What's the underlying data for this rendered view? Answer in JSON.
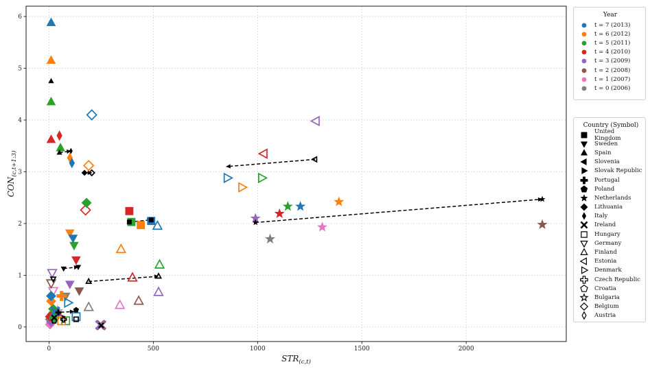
{
  "chart_data": {
    "type": "scatter",
    "title": "",
    "xlabel": "STR_(c,t)",
    "ylabel": "CON_(c,t+1:3)",
    "xlim": [
      -110,
      2480
    ],
    "ylim": [
      -0.28,
      6.2
    ],
    "xticks": [
      0,
      500,
      1000,
      1500,
      2000
    ],
    "yticks": [
      0,
      1,
      2,
      3,
      4,
      5,
      6
    ],
    "grid": true,
    "legend_year": {
      "title": "Year",
      "entries": [
        {
          "label": "t = 7 (2013)",
          "color": "#1f77b4"
        },
        {
          "label": "t = 6 (2012)",
          "color": "#ff7f0e"
        },
        {
          "label": "t = 5 (2011)",
          "color": "#2ca02c"
        },
        {
          "label": "t = 4 (2010)",
          "color": "#d62728"
        },
        {
          "label": "t = 3 (2009)",
          "color": "#9467bd"
        },
        {
          "label": "t = 2 (2008)",
          "color": "#8c564b"
        },
        {
          "label": "t = 1 (2007)",
          "color": "#e377c2"
        },
        {
          "label": "t = 0 (2006)",
          "color": "#7f7f7f"
        }
      ]
    },
    "legend_country": {
      "title": "Country (Symbol)",
      "entries": [
        {
          "label": "United Kingdom",
          "symbol": "square",
          "filled": true
        },
        {
          "label": "Sweden",
          "symbol": "tri-down",
          "filled": true
        },
        {
          "label": "Spain",
          "symbol": "tri-up",
          "filled": true
        },
        {
          "label": "Slovenia",
          "symbol": "tri-left",
          "filled": true
        },
        {
          "label": "Slovak Republic",
          "symbol": "tri-right",
          "filled": true
        },
        {
          "label": "Portugal",
          "symbol": "plus",
          "filled": true
        },
        {
          "label": "Poland",
          "symbol": "pentagon",
          "filled": true
        },
        {
          "label": "Netherlands",
          "symbol": "star",
          "filled": true
        },
        {
          "label": "Lithuania",
          "symbol": "diamond",
          "filled": true
        },
        {
          "label": "Italy",
          "symbol": "thin-diamond",
          "filled": true
        },
        {
          "label": "Ireland",
          "symbol": "x",
          "filled": true
        },
        {
          "label": "Hungary",
          "symbol": "square",
          "filled": false
        },
        {
          "label": "Germany",
          "symbol": "tri-down",
          "filled": false
        },
        {
          "label": "Finland",
          "symbol": "tri-up",
          "filled": false
        },
        {
          "label": "Estonia",
          "symbol": "tri-left",
          "filled": false
        },
        {
          "label": "Denmark",
          "symbol": "tri-right",
          "filled": false
        },
        {
          "label": "Czech Republic",
          "symbol": "plus",
          "filled": false
        },
        {
          "label": "Croatia",
          "symbol": "pentagon",
          "filled": false
        },
        {
          "label": "Bulgaria",
          "symbol": "star",
          "filled": false
        },
        {
          "label": "Belgium",
          "symbol": "diamond",
          "filled": false
        },
        {
          "label": "Austria",
          "symbol": "thin-diamond",
          "filled": false
        }
      ]
    },
    "series": [
      {
        "name": "t = 7 (2013)",
        "color": "#1f77b4",
        "points": [
          {
            "country": "Spain",
            "x": 10,
            "y": 5.88
          },
          {
            "country": "Belgium",
            "x": 205,
            "y": 4.1
          },
          {
            "country": "Italy",
            "x": 110,
            "y": 3.17
          },
          {
            "country": "Denmark",
            "x": 855,
            "y": 2.88
          },
          {
            "country": "Netherlands",
            "x": 1205,
            "y": 2.33
          },
          {
            "country": "United Kingdom",
            "x": 490,
            "y": 2.05
          },
          {
            "country": "Finland",
            "x": 520,
            "y": 1.95
          },
          {
            "country": "Sweden",
            "x": 115,
            "y": 1.72
          },
          {
            "country": "Lithuania",
            "x": 10,
            "y": 0.6
          },
          {
            "country": "Denmark",
            "x": 90,
            "y": 0.47
          },
          {
            "country": "Hungary",
            "x": 130,
            "y": 0.2
          },
          {
            "country": "Ireland",
            "x": 30,
            "y": 0.3
          }
        ]
      },
      {
        "name": "t = 6 (2012)",
        "color": "#ff7f0e",
        "points": [
          {
            "country": "Spain",
            "x": 10,
            "y": 5.15
          },
          {
            "country": "Italy",
            "x": 100,
            "y": 3.27
          },
          {
            "country": "Belgium",
            "x": 190,
            "y": 3.12
          },
          {
            "country": "Denmark",
            "x": 925,
            "y": 2.7
          },
          {
            "country": "Netherlands",
            "x": 1390,
            "y": 2.42
          },
          {
            "country": "United Kingdom",
            "x": 440,
            "y": 1.97
          },
          {
            "country": "Sweden",
            "x": 100,
            "y": 1.82
          },
          {
            "country": "Finland",
            "x": 345,
            "y": 1.5
          },
          {
            "country": "Lithuania",
            "x": 10,
            "y": 0.5
          },
          {
            "country": "Portugal",
            "x": 60,
            "y": 0.6
          },
          {
            "country": "Hungary",
            "x": 60,
            "y": 0.12
          }
        ]
      },
      {
        "name": "t = 5 (2011)",
        "color": "#2ca02c",
        "points": [
          {
            "country": "Spain",
            "x": 10,
            "y": 4.35
          },
          {
            "country": "Spain",
            "x": 55,
            "y": 3.46
          },
          {
            "country": "Lithuania",
            "x": 180,
            "y": 2.4
          },
          {
            "country": "Denmark",
            "x": 1020,
            "y": 2.88
          },
          {
            "country": "Netherlands",
            "x": 1145,
            "y": 2.33
          },
          {
            "country": "United Kingdom",
            "x": 395,
            "y": 2.03
          },
          {
            "country": "Sweden",
            "x": 120,
            "y": 1.58
          },
          {
            "country": "Finland",
            "x": 530,
            "y": 1.2
          },
          {
            "country": "Lithuania",
            "x": 20,
            "y": 0.35
          },
          {
            "country": "Portugal",
            "x": 25,
            "y": 0.18
          },
          {
            "country": "Hungary",
            "x": 80,
            "y": 0.12
          }
        ]
      },
      {
        "name": "t = 4 (2010)",
        "color": "#d62728",
        "points": [
          {
            "country": "Spain",
            "x": 10,
            "y": 3.62
          },
          {
            "country": "Italy",
            "x": 50,
            "y": 3.7
          },
          {
            "country": "Belgium",
            "x": 175,
            "y": 2.26
          },
          {
            "country": "Estonia",
            "x": 1030,
            "y": 3.35
          },
          {
            "country": "Netherlands",
            "x": 1105,
            "y": 2.19
          },
          {
            "country": "United Kingdom",
            "x": 385,
            "y": 2.24
          },
          {
            "country": "Sweden",
            "x": 130,
            "y": 1.3
          },
          {
            "country": "Finland",
            "x": 400,
            "y": 0.95
          },
          {
            "country": "Portugal",
            "x": 35,
            "y": 0.25
          },
          {
            "country": "Lithuania",
            "x": 5,
            "y": 0.2
          }
        ]
      },
      {
        "name": "t = 3 (2009)",
        "color": "#9467bd",
        "points": [
          {
            "country": "Estonia",
            "x": 1280,
            "y": 3.98
          },
          {
            "country": "Netherlands",
            "x": 990,
            "y": 2.1
          },
          {
            "country": "Sweden",
            "x": 100,
            "y": 0.83
          },
          {
            "country": "Finland",
            "x": 525,
            "y": 0.67
          },
          {
            "country": "Germany",
            "x": 15,
            "y": 1.05
          },
          {
            "country": "Lithuania",
            "x": 10,
            "y": 0.1
          },
          {
            "country": "Ireland",
            "x": 245,
            "y": 0.04
          }
        ]
      },
      {
        "name": "t = 2 (2008)",
        "color": "#8c564b",
        "points": [
          {
            "country": "Netherlands",
            "x": 2365,
            "y": 1.98
          },
          {
            "country": "Finland",
            "x": 430,
            "y": 0.5
          },
          {
            "country": "Sweden",
            "x": 145,
            "y": 0.7
          },
          {
            "country": "Germany",
            "x": 10,
            "y": 0.85
          },
          {
            "country": "Lithuania",
            "x": 15,
            "y": 0.25
          },
          {
            "country": "Ireland",
            "x": 250,
            "y": 0.04
          }
        ]
      },
      {
        "name": "t = 1 (2007)",
        "color": "#e377c2",
        "points": [
          {
            "country": "Netherlands",
            "x": 1310,
            "y": 1.93
          },
          {
            "country": "Finland",
            "x": 340,
            "y": 0.42
          },
          {
            "country": "Germany",
            "x": 20,
            "y": 0.7
          },
          {
            "country": "Lithuania",
            "x": 5,
            "y": 0.05
          },
          {
            "country": "Bulgaria",
            "x": 40,
            "y": 0.3
          },
          {
            "country": "Ireland",
            "x": 250,
            "y": 0.03
          }
        ]
      },
      {
        "name": "t = 0 (2006)",
        "color": "#7f7f7f",
        "points": [
          {
            "country": "Netherlands",
            "x": 1060,
            "y": 1.7
          },
          {
            "country": "Finland",
            "x": 190,
            "y": 0.38
          },
          {
            "country": "Sweden",
            "x": 80,
            "y": 0.6
          },
          {
            "country": "Lithuania",
            "x": 5,
            "y": 0.15
          },
          {
            "country": "Ireland",
            "x": 245,
            "y": 0.04
          }
        ]
      }
    ],
    "black_points": [
      {
        "country": "Spain",
        "x": 10,
        "y": 4.75
      },
      {
        "country": "Spain",
        "x": 50,
        "y": 3.37
      },
      {
        "country": "Italy",
        "x": 105,
        "y": 3.4
      },
      {
        "country": "Lithuania",
        "x": 170,
        "y": 2.98
      },
      {
        "country": "Belgium",
        "x": 205,
        "y": 2.98
      },
      {
        "country": "Estonia",
        "x": 1275,
        "y": 3.24
      },
      {
        "country": "Netherlands",
        "x": 990,
        "y": 2.02
      },
      {
        "country": "Netherlands",
        "x": 2365,
        "y": 2.47
      },
      {
        "country": "United Kingdom",
        "x": 385,
        "y": 2.03
      },
      {
        "country": "United Kingdom",
        "x": 490,
        "y": 2.07
      },
      {
        "country": "Sweden",
        "x": 70,
        "y": 1.13
      },
      {
        "country": "Sweden",
        "x": 140,
        "y": 1.16
      },
      {
        "country": "Finland",
        "x": 190,
        "y": 0.88
      },
      {
        "country": "Finland",
        "x": 525,
        "y": 0.98
      },
      {
        "country": "Germany",
        "x": 20,
        "y": 0.93
      },
      {
        "country": "Portugal",
        "x": 45,
        "y": 0.28
      },
      {
        "country": "Poland",
        "x": 130,
        "y": 0.33
      },
      {
        "country": "Ireland",
        "x": 250,
        "y": 0.03
      },
      {
        "country": "Ireland",
        "x": 25,
        "y": 0.18
      },
      {
        "country": "Czech Republic",
        "x": 70,
        "y": 0.15
      },
      {
        "country": "Hungary",
        "x": 130,
        "y": 0.15
      },
      {
        "country": "Croatia",
        "x": 25,
        "y": 0.12
      }
    ],
    "arrows": [
      {
        "country": "Estonia",
        "from": [
          1275,
          3.24
        ],
        "to": [
          850,
          3.1
        ]
      },
      {
        "country": "Netherlands",
        "from": [
          990,
          2.02
        ],
        "to": [
          2365,
          2.47
        ]
      },
      {
        "country": "Spain",
        "from": [
          50,
          3.37
        ],
        "to": [
          105,
          3.4
        ]
      },
      {
        "country": "Lithuania",
        "from": [
          170,
          2.98
        ],
        "to": [
          205,
          2.98
        ]
      },
      {
        "country": "United Kingdom",
        "from": [
          385,
          2.03
        ],
        "to": [
          490,
          2.07
        ]
      },
      {
        "country": "Sweden",
        "from": [
          70,
          1.13
        ],
        "to": [
          140,
          1.16
        ]
      },
      {
        "country": "Finland",
        "from": [
          190,
          0.88
        ],
        "to": [
          525,
          0.98
        ]
      },
      {
        "country": "Czech Republic",
        "from": [
          30,
          0.28
        ],
        "to": [
          120,
          0.3
        ]
      },
      {
        "country": "Ireland",
        "from": [
          25,
          0.18
        ],
        "to": [
          80,
          0.2
        ]
      }
    ]
  }
}
